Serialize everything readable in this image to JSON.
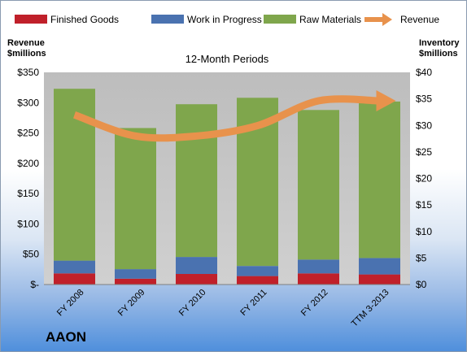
{
  "chart_data": {
    "type": "bar",
    "title": "12-Month Periods",
    "company": "AAON",
    "categories": [
      "FY 2008",
      "FY 2009",
      "FY 2010",
      "FY 2011",
      "FY 2012",
      "TTM 3-2013"
    ],
    "stacked": true,
    "series": [
      {
        "name": "Finished Goods",
        "axis": "right",
        "color": "#c0202a",
        "values": [
          2.1,
          1.1,
          2.0,
          1.6,
          2.1,
          1.9
        ]
      },
      {
        "name": "Work in Progress",
        "axis": "right",
        "color": "#4a72b0",
        "values": [
          2.4,
          1.8,
          3.2,
          1.9,
          2.6,
          3.1
        ]
      },
      {
        "name": "Raw Materials",
        "axis": "right",
        "color": "#7fa64c",
        "values": [
          32.4,
          26.6,
          28.8,
          31.7,
          28.2,
          29.5
        ]
      }
    ],
    "line_series": {
      "name": "Revenue",
      "axis": "left",
      "color": "#e8924c",
      "style": "arrow",
      "values": [
        280,
        245,
        245,
        262,
        303,
        303
      ]
    },
    "ylabel_left": [
      "Revenue",
      "$millions"
    ],
    "ylabel_right": [
      "Inventory",
      "$millions"
    ],
    "ylim_left": [
      0,
      350
    ],
    "ylim_right": [
      0,
      40
    ],
    "yticks_left": [
      "$-",
      "$50",
      "$100",
      "$150",
      "$200",
      "$250",
      "$300",
      "$350"
    ],
    "yticks_right": [
      "$0",
      "$5",
      "$10",
      "$15",
      "$20",
      "$25",
      "$30",
      "$35",
      "$40"
    ],
    "legend_position": "top",
    "grid": false,
    "plot_background": "#c0c0c0"
  }
}
